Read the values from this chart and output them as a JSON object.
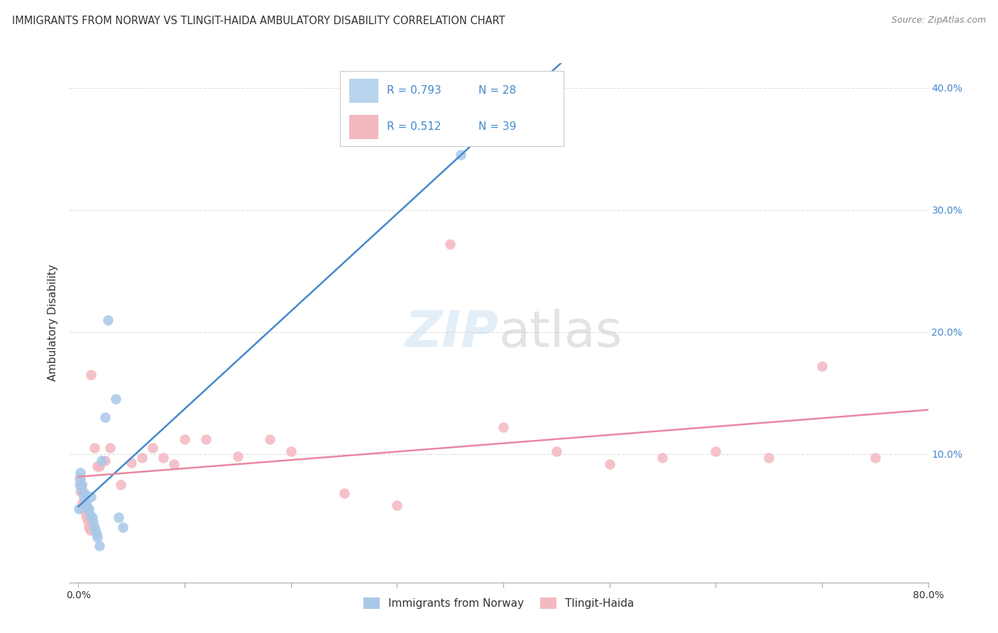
{
  "title": "IMMIGRANTS FROM NORWAY VS TLINGIT-HAIDA AMBULATORY DISABILITY CORRELATION CHART",
  "source": "Source: ZipAtlas.com",
  "ylabel": "Ambulatory Disability",
  "xmin": 0.0,
  "xmax": 0.8,
  "ymin": 0.0,
  "ymax": 0.42,
  "yticks": [
    0.1,
    0.2,
    0.3,
    0.4
  ],
  "xticks": [
    0.0,
    0.1,
    0.2,
    0.3,
    0.4,
    0.5,
    0.6,
    0.7,
    0.8
  ],
  "legend_r1": "R = 0.793",
  "legend_n1": "N = 28",
  "legend_r2": "R = 0.512",
  "legend_n2": "N = 39",
  "series1_label": "Immigrants from Norway",
  "series2_label": "Tlingit-Haida",
  "blue_scatter_color": "#a8c8e8",
  "pink_scatter_color": "#f4b8c0",
  "blue_line_color": "#4488cc",
  "pink_line_color": "#e888a0",
  "legend_blue_fill": "#b8d4ec",
  "legend_pink_fill": "#f4b8c0",
  "text_color": "#333333",
  "blue_label_color": "#4488cc",
  "grid_color": "#dddddd",
  "background_color": "#ffffff",
  "norway_x": [
    0.0005,
    0.001,
    0.002,
    0.002,
    0.003,
    0.004,
    0.005,
    0.006,
    0.007,
    0.008,
    0.009,
    0.01,
    0.011,
    0.012,
    0.013,
    0.014,
    0.015,
    0.016,
    0.017,
    0.018,
    0.02,
    0.022,
    0.025,
    0.028,
    0.035,
    0.038,
    0.042,
    0.36
  ],
  "norway_y": [
    0.055,
    0.075,
    0.08,
    0.085,
    0.075,
    0.07,
    0.065,
    0.068,
    0.06,
    0.058,
    0.055,
    0.055,
    0.05,
    0.065,
    0.048,
    0.045,
    0.04,
    0.038,
    0.035,
    0.032,
    0.025,
    0.095,
    0.13,
    0.21,
    0.145,
    0.048,
    0.04,
    0.345
  ],
  "tlingit_x": [
    0.001,
    0.002,
    0.003,
    0.004,
    0.005,
    0.006,
    0.007,
    0.008,
    0.009,
    0.01,
    0.011,
    0.012,
    0.015,
    0.018,
    0.02,
    0.025,
    0.03,
    0.04,
    0.05,
    0.06,
    0.07,
    0.08,
    0.09,
    0.1,
    0.12,
    0.15,
    0.18,
    0.2,
    0.25,
    0.3,
    0.35,
    0.4,
    0.45,
    0.5,
    0.55,
    0.6,
    0.65,
    0.7,
    0.75
  ],
  "tlingit_y": [
    0.08,
    0.07,
    0.075,
    0.06,
    0.055,
    0.06,
    0.05,
    0.048,
    0.045,
    0.04,
    0.038,
    0.165,
    0.105,
    0.09,
    0.09,
    0.095,
    0.105,
    0.075,
    0.093,
    0.097,
    0.105,
    0.097,
    0.092,
    0.112,
    0.112,
    0.098,
    0.112,
    0.102,
    0.068,
    0.058,
    0.272,
    0.122,
    0.102,
    0.092,
    0.097,
    0.102,
    0.097,
    0.172,
    0.097
  ]
}
